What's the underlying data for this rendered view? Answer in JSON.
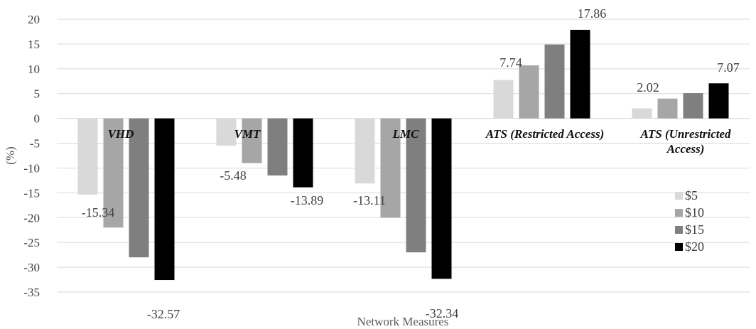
{
  "chart_data": {
    "type": "bar",
    "title": "",
    "xlabel": "Network Measures",
    "ylabel": "(%)",
    "ylim": [
      -35,
      20
    ],
    "yticks": [
      20,
      15,
      10,
      5,
      0,
      -5,
      -10,
      -15,
      -20,
      -25,
      -30,
      -35
    ],
    "grid": true,
    "legend_position": "right",
    "categories": [
      [
        "VHD"
      ],
      [
        "VMT"
      ],
      [
        "LMC"
      ],
      [
        "ATS (Restricted Access)"
      ],
      [
        "ATS (Unrestricted",
        "Access)"
      ]
    ],
    "series": [
      {
        "name": "$5",
        "color": "#d9d9d9",
        "values": [
          -15.34,
          -5.48,
          -13.11,
          7.74,
          2.02
        ]
      },
      {
        "name": "$10",
        "color": "#a6a6a6",
        "values": [
          -22.0,
          -9.0,
          -20.0,
          10.7,
          4.0
        ]
      },
      {
        "name": "$15",
        "color": "#7f7f7f",
        "values": [
          -28.0,
          -11.5,
          -27.0,
          14.9,
          5.1
        ]
      },
      {
        "name": "$20",
        "color": "#000000",
        "values": [
          -32.57,
          -13.89,
          -32.34,
          17.86,
          7.07
        ]
      }
    ],
    "data_labels": [
      {
        "series": 0,
        "category": 0,
        "text": "-15.34"
      },
      {
        "series": 3,
        "category": 0,
        "text": "-32.57"
      },
      {
        "series": 0,
        "category": 1,
        "text": "-5.48"
      },
      {
        "series": 3,
        "category": 1,
        "text": "-13.89"
      },
      {
        "series": 0,
        "category": 2,
        "text": "-13.11"
      },
      {
        "series": 3,
        "category": 2,
        "text": "-32.34"
      },
      {
        "series": 0,
        "category": 3,
        "text": "7.74"
      },
      {
        "series": 3,
        "category": 3,
        "text": "17.86"
      },
      {
        "series": 0,
        "category": 4,
        "text": "2.02"
      },
      {
        "series": 3,
        "category": 4,
        "text": "7.07"
      }
    ]
  }
}
